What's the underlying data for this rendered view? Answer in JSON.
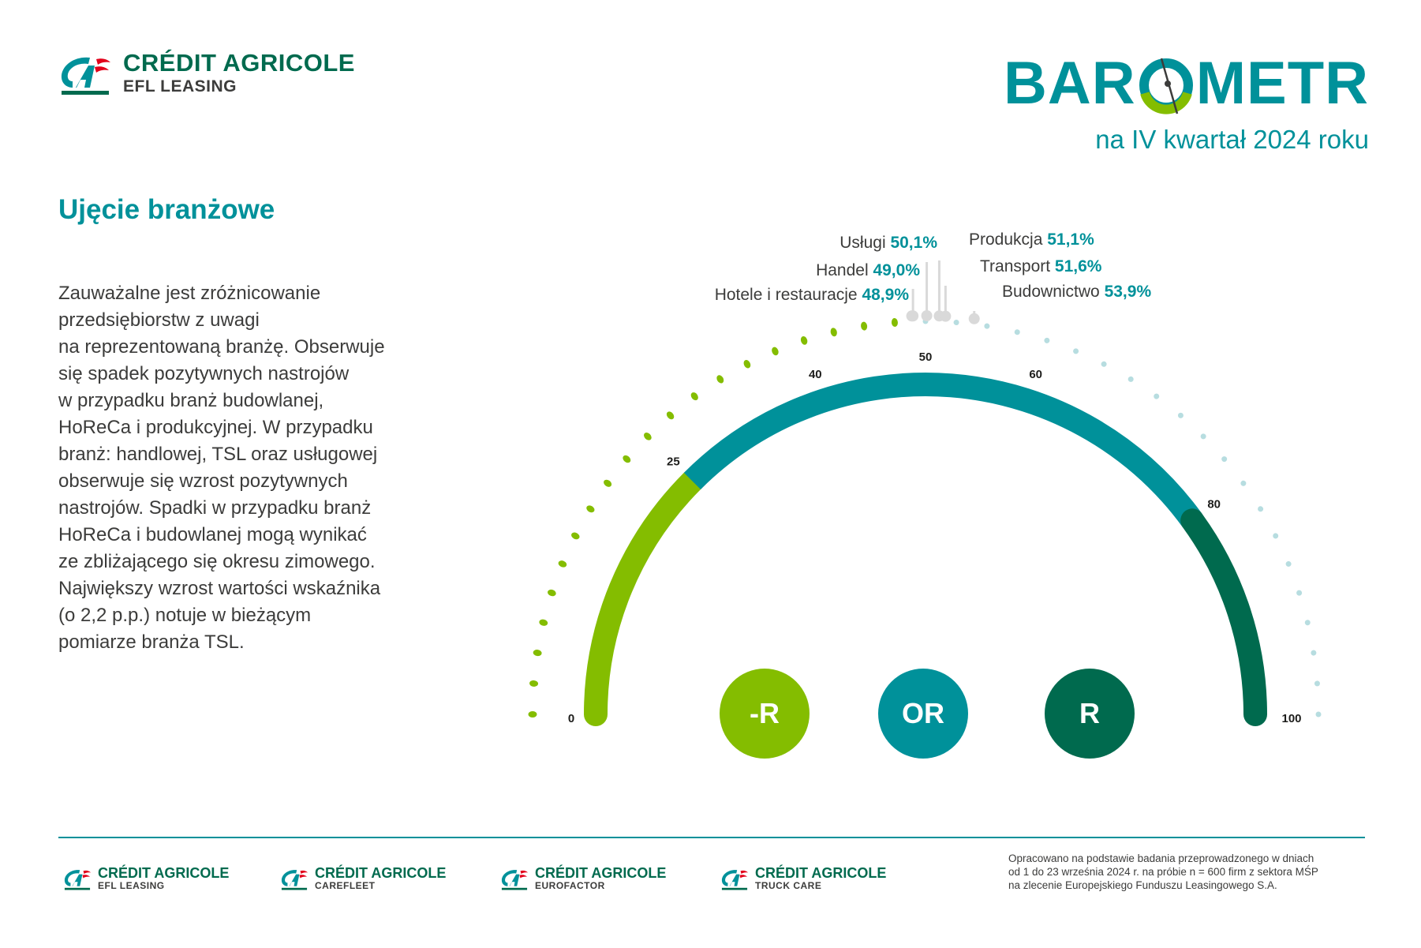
{
  "header": {
    "brand_name": "CRÉDIT AGRICOLE",
    "brand_sub": "EFL LEASING",
    "barometr_word_left": "BAR",
    "barometr_word_right": "METR",
    "barometr_subtitle": "na IV kwartał 2024 roku"
  },
  "section_title": "Ujęcie branżowe",
  "body_lines": [
    "Zauważalne jest zróżnicowanie",
    "przedsiębiorstw z uwagi",
    "na reprezentowaną branżę. Obserwuje",
    "się spadek pozytywnych nastrojów",
    "w przypadku branż budowlanej,",
    "HoReCa i produkcyjnej. W przypadku",
    "branż: handlowej, TSL oraz usługowej",
    "obserwuje się wzrost pozytywnych",
    "nastrojów. Spadki w przypadku branż",
    "HoReCa i budowlanej mogą wynikać",
    "ze zbliżającego się okresu zimowego.",
    "Największy wzrost wartości wskaźnika",
    "(o 2,2 p.p.) notuje w bieżącym",
    "pomiarze branża TSL."
  ],
  "chart_data": {
    "type": "gauge",
    "scale_min": 0,
    "scale_max": 100,
    "tick_labels": [
      "0",
      "25",
      "40",
      "50",
      "60",
      "80",
      "100"
    ],
    "ticks": [
      0,
      25,
      40,
      50,
      60,
      80,
      100
    ],
    "zones": [
      {
        "label": "-R",
        "from": 0,
        "to": 25,
        "color": "#84bd00"
      },
      {
        "label": "OR",
        "from": 25,
        "to": 80,
        "color": "#00919a"
      },
      {
        "label": "R",
        "from": 80,
        "to": 100,
        "color": "#006a4e"
      }
    ],
    "series": [
      {
        "name": "Usługi",
        "value": 50.1,
        "value_label": "50,1%"
      },
      {
        "name": "Handel",
        "value": 49.0,
        "value_label": "49,0%"
      },
      {
        "name": "Hotele i restauracje",
        "value": 48.9,
        "value_label": "48,9%"
      },
      {
        "name": "Produkcja",
        "value": 51.1,
        "value_label": "51,1%"
      },
      {
        "name": "Transport",
        "value": 51.6,
        "value_label": "51,6%"
      },
      {
        "name": "Budownictwo",
        "value": 53.9,
        "value_label": "53,9%"
      }
    ],
    "colors": {
      "dots_low": "#84bd00",
      "dots_high": "#b7dde0",
      "marker": "#d9d9d9"
    }
  },
  "badges": {
    "negative_r": "-R",
    "or": "OR",
    "r": "R"
  },
  "footer": {
    "brands": [
      {
        "name": "CRÉDIT AGRICOLE",
        "sub": "EFL LEASING"
      },
      {
        "name": "CRÉDIT AGRICOLE",
        "sub": "CAREFLEET"
      },
      {
        "name": "CRÉDIT AGRICOLE",
        "sub": "EUROFACTOR"
      },
      {
        "name": "CRÉDIT AGRICOLE",
        "sub": "TRUCK CARE"
      }
    ],
    "note_lines": [
      "Opracowano na podstawie badania przeprowadzonego w dniach",
      "od 1 do 23 września 2024 r. na próbie n = 600 firm z sektora MŚP",
      "na zlecenie Europejskiego Funduszu Leasingowego S.A."
    ]
  }
}
